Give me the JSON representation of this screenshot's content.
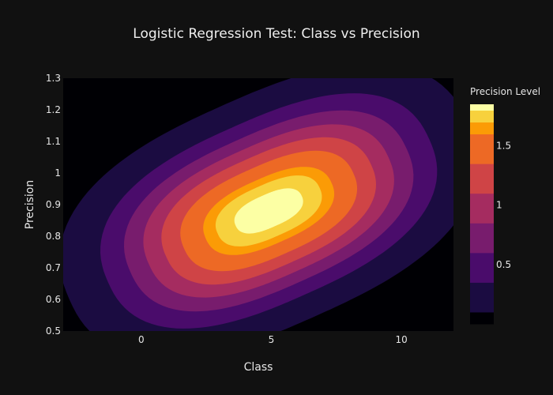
{
  "chart_data": {
    "type": "contour",
    "title": "Logistic Regression Test: Class vs Precision",
    "xlabel": "Class",
    "ylabel": "Precision",
    "xlim": [
      -3,
      12
    ],
    "ylim": [
      0.5,
      1.3
    ],
    "x_ticks": [
      0,
      5,
      10
    ],
    "y_ticks": [
      0.5,
      0.6,
      0.7,
      0.8,
      0.9,
      1,
      1.1,
      1.2,
      1.3
    ],
    "colorbar": {
      "title": "Precision Level",
      "ticks": [
        0.5,
        1,
        1.5
      ],
      "range": [
        0,
        1.85
      ],
      "levels": [
        {
          "from": 0.0,
          "to": 0.1,
          "color": "#000004"
        },
        {
          "from": 0.1,
          "to": 0.35,
          "color": "#1b0c41"
        },
        {
          "from": 0.35,
          "to": 0.6,
          "color": "#4a0c6b"
        },
        {
          "from": 0.6,
          "to": 0.85,
          "color": "#781c6d"
        },
        {
          "from": 0.85,
          "to": 1.1,
          "color": "#a52c60"
        },
        {
          "from": 1.1,
          "to": 1.35,
          "color": "#cf4446"
        },
        {
          "from": 1.35,
          "to": 1.6,
          "color": "#ed6925"
        },
        {
          "from": 1.6,
          "to": 1.7,
          "color": "#fb9b06"
        },
        {
          "from": 1.7,
          "to": 1.8,
          "color": "#f7d13d"
        },
        {
          "from": 1.8,
          "to": 1.85,
          "color": "#fcffa4"
        }
      ]
    },
    "contour_peak": {
      "x": 4.9,
      "y": 0.88,
      "value": 1.85
    },
    "grid": false
  },
  "style": {
    "background": "#111111",
    "plot_background": "#000004"
  }
}
